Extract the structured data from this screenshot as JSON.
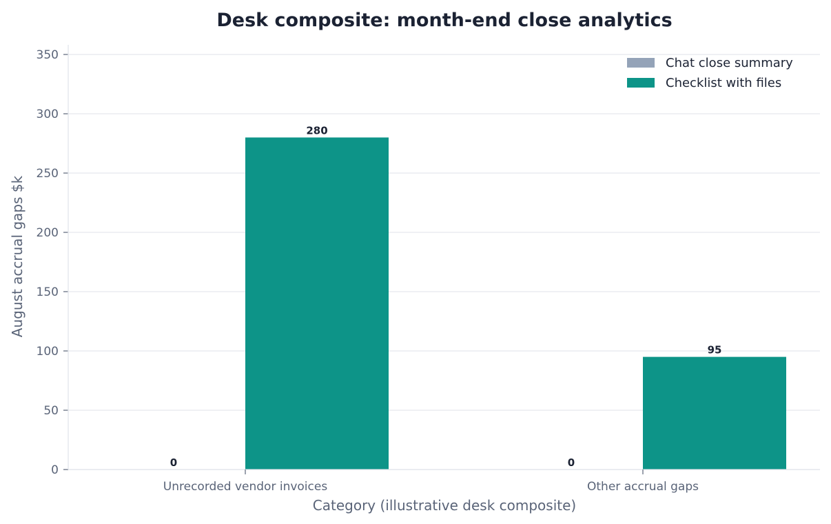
{
  "chart_data": {
    "type": "bar",
    "title": "Desk composite: month-end close analytics",
    "xlabel": "Category (illustrative desk composite)",
    "ylabel": "August accrual gaps $k",
    "categories": [
      "Unrecorded vendor invoices",
      "Other accrual gaps"
    ],
    "series": [
      {
        "name": "Chat close summary",
        "values": [
          0,
          0
        ],
        "color": "#94a3b8"
      },
      {
        "name": "Checklist with files",
        "values": [
          280,
          95
        ],
        "color": "#0d9488"
      }
    ],
    "ylim": [
      0,
      350
    ],
    "yticks": [
      0,
      50,
      100,
      150,
      200,
      250,
      300,
      350
    ],
    "grid": true,
    "legend_position": "top-right"
  }
}
